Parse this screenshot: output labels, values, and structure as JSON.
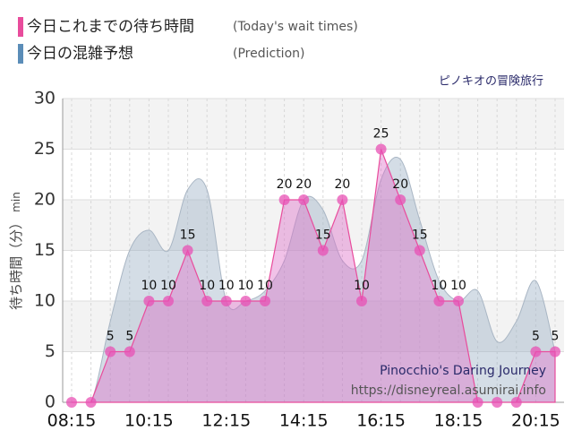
{
  "chart_data": {
    "type": "area",
    "subtitle": "ピノキオの冒険旅行",
    "y_label": "待ち時間（分）",
    "y_unit": "min",
    "annotations": [
      "Pinocchio's Daring Journey",
      "https://disneyreal.asumirai.info"
    ],
    "categories": [
      "08:15",
      null,
      null,
      null,
      "10:15",
      null,
      null,
      null,
      "12:15",
      null,
      null,
      null,
      "14:15",
      null,
      null,
      null,
      "16:15",
      null,
      null,
      null,
      "18:15",
      null,
      null,
      null,
      "20:15",
      null
    ],
    "ylim": [
      0,
      30
    ],
    "yticks": [
      0,
      5,
      10,
      15,
      20,
      25,
      30
    ],
    "grid": true,
    "series": [
      {
        "name": "今日これまでの待ち時間",
        "label_en": "(Today's wait times)",
        "color": "#e84c9c",
        "values": [
          0,
          0,
          5,
          5,
          10,
          10,
          15,
          10,
          10,
          10,
          10,
          20,
          20,
          15,
          20,
          10,
          25,
          20,
          15,
          10,
          10,
          0,
          0,
          0,
          5,
          5
        ]
      },
      {
        "name": "今日の混雑予想",
        "label_en": "(Prediction)",
        "color": "#5b8db8",
        "values": [
          0,
          0,
          8,
          15,
          17,
          15,
          21,
          21,
          10,
          10,
          11,
          14,
          20,
          19,
          14,
          14,
          22,
          24,
          18,
          12,
          10,
          11,
          6,
          8,
          12,
          5
        ]
      }
    ]
  }
}
